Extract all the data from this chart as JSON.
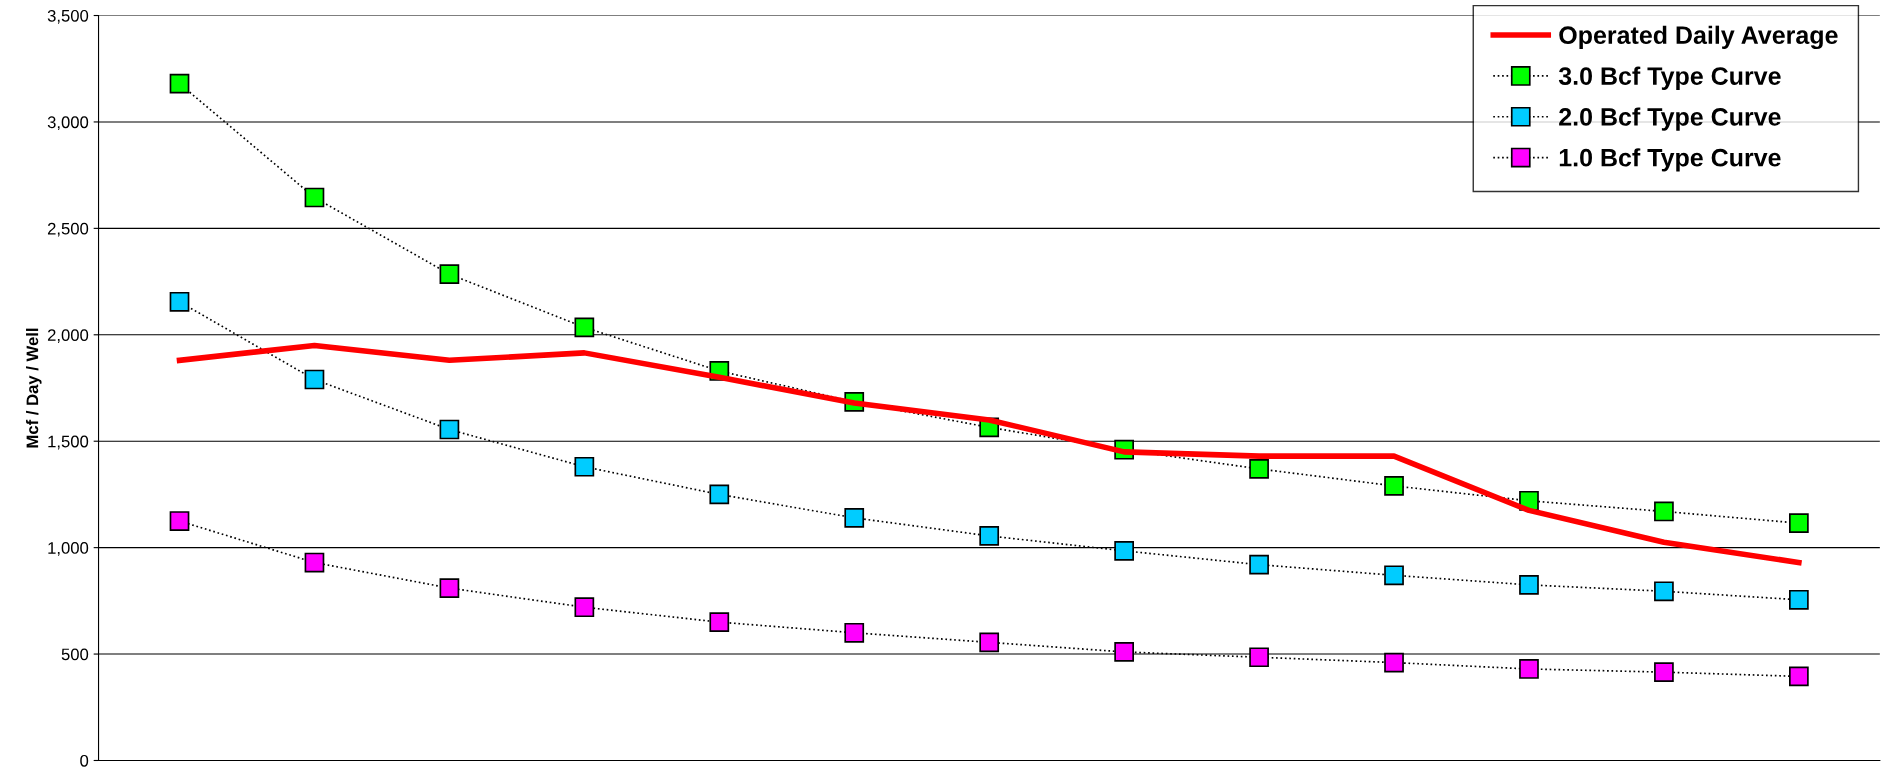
{
  "chart_data": {
    "type": "line",
    "ylabel": "Mcf / Day / Well",
    "categories": [
      null,
      null,
      null,
      null,
      null,
      null,
      null,
      null,
      null,
      null,
      null,
      null,
      null
    ],
    "series": [
      {
        "name": "Operated Daily Average",
        "color": "#ff0000",
        "marker": "none",
        "line_style": "solid",
        "values": [
          1880,
          1950,
          1880,
          1915,
          1800,
          1680,
          1600,
          1450,
          1430,
          1430,
          1175,
          1025,
          930
        ]
      },
      {
        "name": "3.0 Bcf Type Curve",
        "color": "#00ff00",
        "marker": "square",
        "line_style": "dotted",
        "values": [
          3180,
          2645,
          2285,
          2035,
          1830,
          1685,
          1565,
          1460,
          1370,
          1290,
          1220,
          1170,
          1115
        ]
      },
      {
        "name": "2.0 Bcf Type Curve",
        "color": "#00ccff",
        "marker": "square",
        "line_style": "dotted",
        "values": [
          2155,
          1790,
          1555,
          1380,
          1250,
          1140,
          1055,
          985,
          920,
          870,
          825,
          795,
          755
        ]
      },
      {
        "name": "1.0 Bcf Type Curve",
        "color": "#ff00ff",
        "marker": "square",
        "line_style": "dotted",
        "values": [
          1125,
          930,
          810,
          720,
          650,
          600,
          555,
          510,
          485,
          460,
          430,
          415,
          395
        ]
      }
    ],
    "ylim": [
      0,
      3500
    ],
    "yticks": [
      {
        "value": 0,
        "label": "0"
      },
      {
        "value": 500,
        "label": "500"
      },
      {
        "value": 1000,
        "label": "1,000"
      },
      {
        "value": 1500,
        "label": "1,500"
      },
      {
        "value": 2000,
        "label": "2,000"
      },
      {
        "value": 2500,
        "label": "2,500"
      },
      {
        "value": 3000,
        "label": "3,000"
      },
      {
        "value": 3500,
        "label": "3,500"
      }
    ],
    "grid": "y",
    "legend": "top right"
  }
}
